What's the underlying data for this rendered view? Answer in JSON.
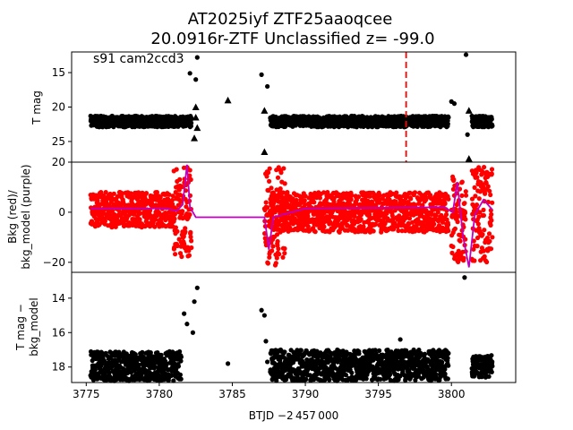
{
  "chart_data": [
    {
      "type": "scatter",
      "panel": "top",
      "title_line1": "AT2025iyf  ZTF25aaoqcee",
      "title_line2": "20.0916r-ZTF Unclassified z= -99.0",
      "annotation": "s91 cam2ccd3",
      "ylabel": "T mag",
      "ylim": [
        28,
        12
      ],
      "yticks": [
        "15",
        "20",
        "25"
      ],
      "ytick_values": [
        15,
        20,
        25
      ],
      "marker_line_x": 3796.9,
      "marker_line_color": "#ff0000",
      "series": [
        {
          "name": "T mag",
          "color": "#000000",
          "segments": [
            [
              3775.3,
              3782.2,
              21.3,
              22.9
            ],
            [
              3787.6,
              3799.8,
              21.3,
              22.9
            ],
            [
              3801.4,
              3802.8,
              21.3,
              22.9
            ]
          ]
        },
        {
          "name": "T mag outliers",
          "color": "#000000",
          "points": [
            [
              3782.1,
              15.1
            ],
            [
              3782.5,
              16.0
            ],
            [
              3782.6,
              12.8
            ],
            [
              3787.0,
              15.3
            ],
            [
              3787.4,
              17.0
            ],
            [
              3801.0,
              12.4
            ],
            [
              3801.1,
              24.0
            ],
            [
              3800.2,
              19.5
            ],
            [
              3800.0,
              19.2
            ]
          ]
        },
        {
          "name": "T mag upper limits",
          "color": "#000000",
          "triangles": [
            [
              3782.5,
              20.0
            ],
            [
              3782.5,
              21.5
            ],
            [
              3782.6,
              23.0
            ],
            [
              3784.7,
              19.0
            ],
            [
              3787.2,
              20.5
            ],
            [
              3787.2,
              26.5
            ],
            [
              3801.2,
              20.5
            ],
            [
              3801.2,
              27.5
            ],
            [
              3782.4,
              24.5
            ]
          ]
        }
      ]
    },
    {
      "type": "scatter",
      "panel": "middle",
      "ylabel_line1": "Bkg (red)/",
      "ylabel_line2": "bkg_model (purple)",
      "ylim": [
        -24,
        20
      ],
      "yticks": [
        "20",
        "0",
        "−20"
      ],
      "ytick_values": [
        20,
        0,
        -20
      ],
      "series": [
        {
          "name": "Bkg",
          "color": "#ff0000",
          "segments": [
            [
              3775.3,
              3781.0,
              -6,
              8
            ],
            [
              3781.0,
              3782.2,
              -18,
              18
            ],
            [
              3787.6,
              3799.8,
              -8,
              8
            ],
            [
              3787.2,
              3788.6,
              -22,
              18
            ],
            [
              3800.0,
              3801.0,
              -20,
              15
            ],
            [
              3801.4,
              3802.8,
              -20,
              18
            ]
          ]
        },
        {
          "name": "bkg_model",
          "color": "#bf00bf",
          "line": [
            [
              3775.3,
              1.5
            ],
            [
              3780.5,
              1.5
            ],
            [
              3781.2,
              0.5
            ],
            [
              3781.6,
              3.0
            ],
            [
              3781.9,
              19.0
            ],
            [
              3782.1,
              2.0
            ],
            [
              3782.5,
              -2.0
            ],
            [
              3787.2,
              -2.0
            ],
            [
              3787.5,
              -15.0
            ],
            [
              3787.8,
              -2.0
            ],
            [
              3790.0,
              1.5
            ],
            [
              3799.5,
              2.0
            ],
            [
              3800.1,
              0.0
            ],
            [
              3800.4,
              12.0
            ],
            [
              3800.8,
              -10.0
            ],
            [
              3801.2,
              -22.0
            ],
            [
              3801.6,
              -1.0
            ],
            [
              3802.2,
              5.0
            ],
            [
              3802.8,
              1.0
            ]
          ]
        }
      ]
    },
    {
      "type": "scatter",
      "panel": "bottom",
      "ylabel_line1": "T mag −",
      "ylabel_line2": "bkg_model",
      "xlabel": "BTJD −2 457 000",
      "xlim": [
        3774.0,
        3804.4
      ],
      "ylim": [
        18.9,
        12.5
      ],
      "xticks": [
        "3775",
        "3780",
        "3785",
        "3790",
        "3795",
        "3800"
      ],
      "xtick_values": [
        3775,
        3780,
        3785,
        3790,
        3795,
        3800
      ],
      "yticks": [
        "14",
        "16",
        "18"
      ],
      "ytick_values": [
        14,
        16,
        18
      ],
      "series": [
        {
          "name": "T mag − bkg_model",
          "color": "#000000",
          "segments": [
            [
              3775.3,
              3781.5,
              17.1,
              18.8
            ],
            [
              3787.6,
              3799.8,
              17.0,
              18.8
            ],
            [
              3801.4,
              3802.8,
              17.3,
              18.6
            ]
          ]
        },
        {
          "name": "outliers",
          "color": "#000000",
          "points": [
            [
              3782.6,
              13.4
            ],
            [
              3782.4,
              14.2
            ],
            [
              3781.7,
              14.9
            ],
            [
              3781.9,
              15.5
            ],
            [
              3787.0,
              14.7
            ],
            [
              3787.2,
              15.0
            ],
            [
              3787.3,
              16.5
            ],
            [
              3800.9,
              12.8
            ],
            [
              3796.5,
              16.4
            ],
            [
              3782.3,
              16.0
            ],
            [
              3784.7,
              17.8
            ],
            [
              3787.4,
              17.7
            ]
          ]
        }
      ]
    }
  ]
}
